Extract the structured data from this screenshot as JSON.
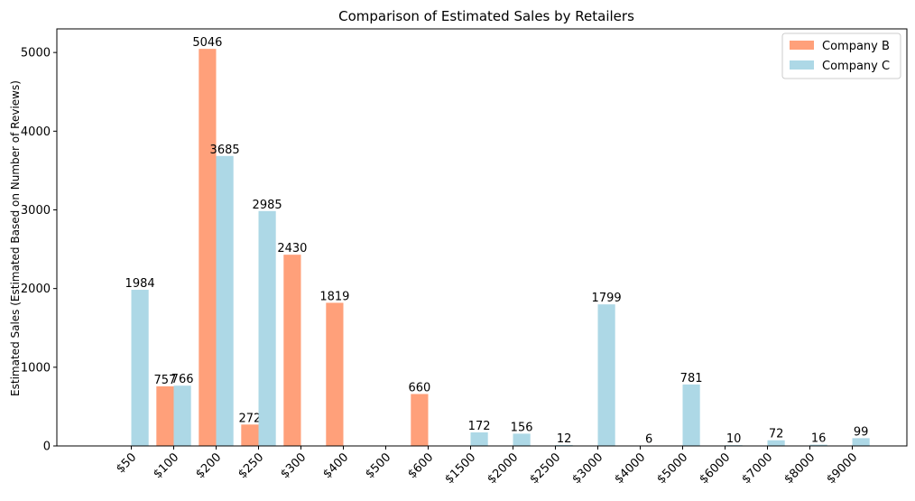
{
  "chart_data": {
    "type": "bar",
    "title": "Comparison of Estimated Sales by Retailers",
    "xlabel": "",
    "ylabel": "Estimated Sales (Estimated Based on Number of Reviews)",
    "categories": [
      "$50",
      "$100",
      "$200",
      "$250",
      "$300",
      "$400",
      "$500",
      "$600",
      "$1500",
      "$2000",
      "$2500",
      "$3000",
      "$4000",
      "$5000",
      "$6000",
      "$7000",
      "$8000",
      "$9000"
    ],
    "series": [
      {
        "name": "Company B",
        "color": "#FFA07A",
        "values": [
          null,
          757,
          5046,
          272,
          2430,
          1819,
          null,
          660,
          null,
          null,
          null,
          null,
          null,
          null,
          null,
          null,
          null,
          null
        ]
      },
      {
        "name": "Company C",
        "color": "#ADD8E6",
        "values": [
          1984,
          766,
          3685,
          2985,
          null,
          null,
          null,
          null,
          172,
          156,
          12,
          1799,
          6,
          781,
          10,
          72,
          16,
          99
        ]
      }
    ],
    "ylim": [
      0,
      5300
    ],
    "yticks": [
      0,
      1000,
      2000,
      3000,
      4000,
      5000
    ],
    "grid": false,
    "legend": "top-right",
    "x_tick_rotation": 45
  }
}
